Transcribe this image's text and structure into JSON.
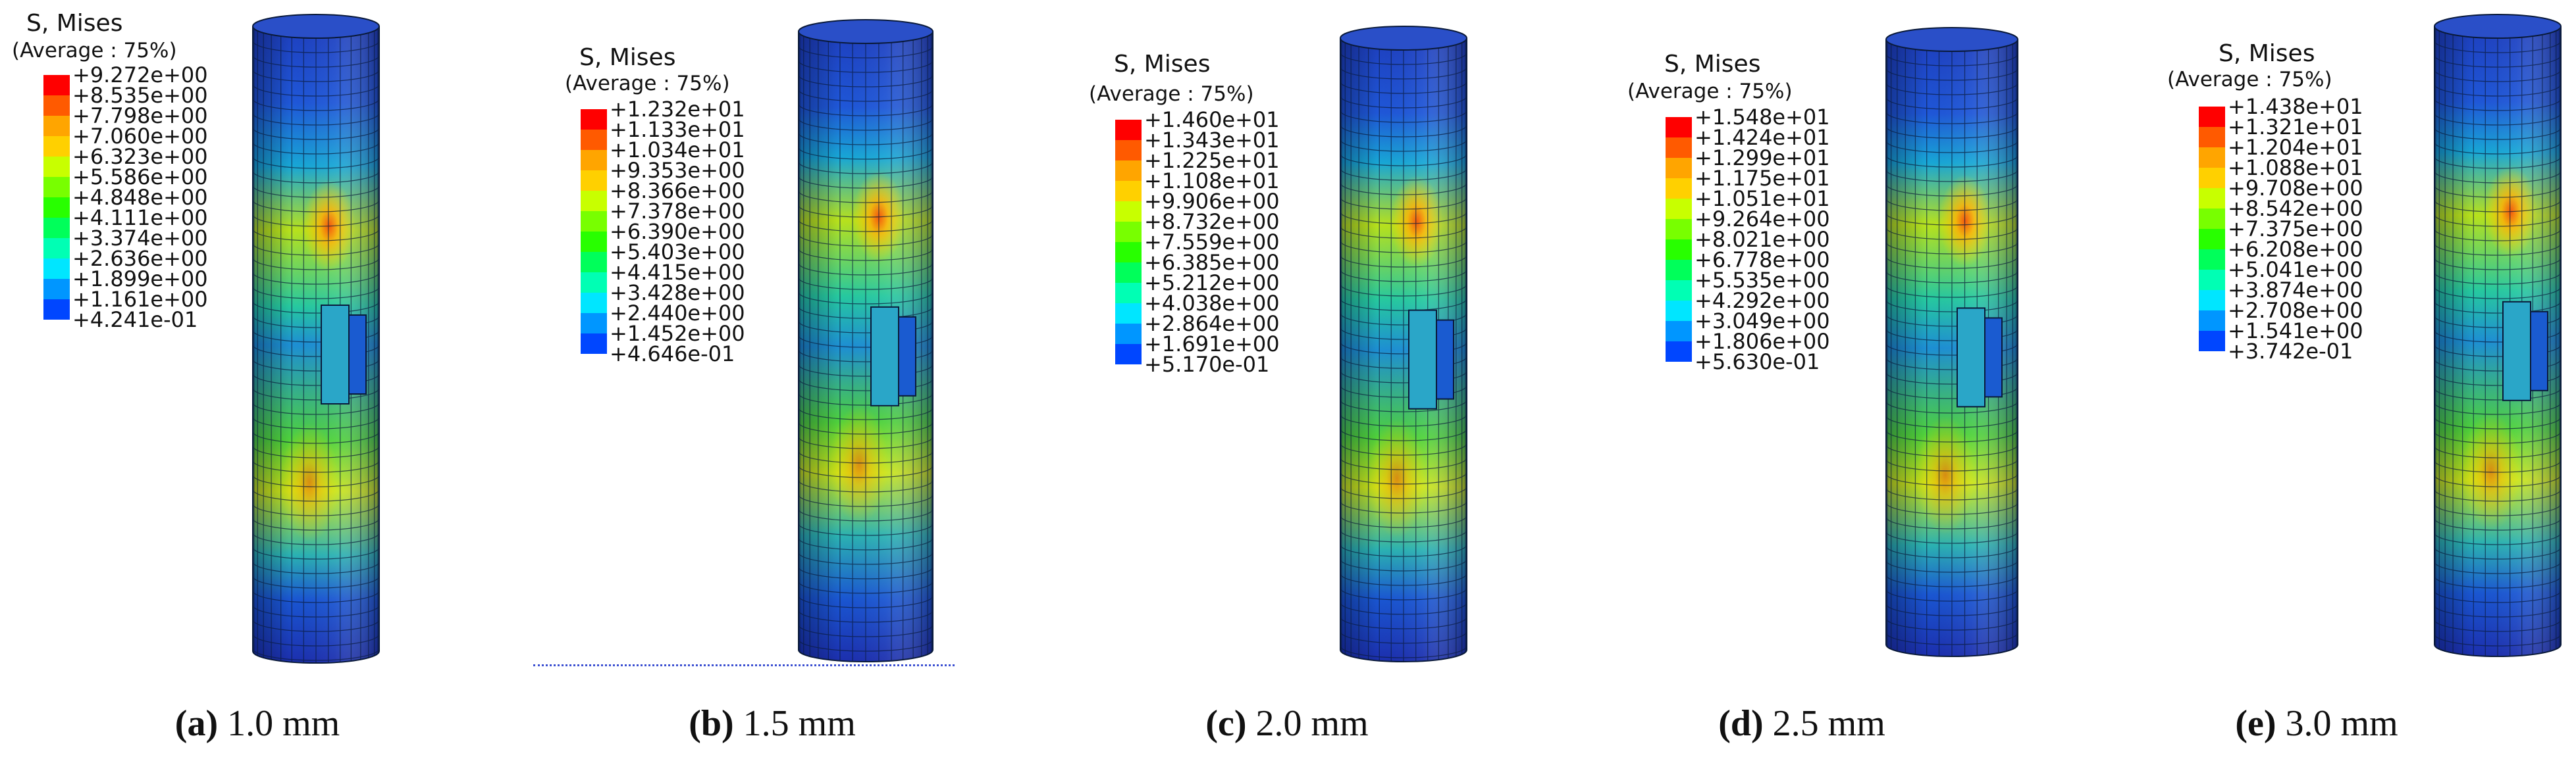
{
  "legend_colors": [
    "#ff0000",
    "#ff5a00",
    "#ffa500",
    "#ffd000",
    "#c8ff00",
    "#78ff00",
    "#28ff00",
    "#00ff5a",
    "#00ffb4",
    "#00e6ff",
    "#0096ff",
    "#0046ff",
    "#0000ff"
  ],
  "panels": [
    {
      "id": "a",
      "title": "S, Mises",
      "subtitle": "(Average : 75%)",
      "legend_values": [
        "+9.272e+00",
        "+8.535e+00",
        "+7.798e+00",
        "+7.060e+00",
        "+6.323e+00",
        "+5.586e+00",
        "+4.848e+00",
        "+4.111e+00",
        "+3.374e+00",
        "+2.636e+00",
        "+1.899e+00",
        "+1.161e+00",
        "+4.241e-01"
      ],
      "caption_letter": "a",
      "caption_value": "1.0 mm",
      "hotspots": [
        0.32,
        0.73
      ]
    },
    {
      "id": "b",
      "title": "S, Mises",
      "subtitle": "(Average : 75%)",
      "legend_values": [
        "+1.232e+01",
        "+1.133e+01",
        "+1.034e+01",
        "+9.353e+00",
        "+8.366e+00",
        "+7.378e+00",
        "+6.390e+00",
        "+5.403e+00",
        "+4.415e+00",
        "+3.428e+00",
        "+2.440e+00",
        "+1.452e+00",
        "+4.646e-01"
      ],
      "caption_letter": "b",
      "caption_value": "1.5 mm",
      "hotspots": [
        0.3,
        0.7
      ]
    },
    {
      "id": "c",
      "title": "S, Mises",
      "subtitle": "(Average : 75%)",
      "legend_values": [
        "+1.460e+01",
        "+1.343e+01",
        "+1.225e+01",
        "+1.108e+01",
        "+9.906e+00",
        "+8.732e+00",
        "+7.559e+00",
        "+6.385e+00",
        "+5.212e+00",
        "+4.038e+00",
        "+2.864e+00",
        "+1.691e+00",
        "+5.170e-01"
      ],
      "caption_letter": "c",
      "caption_value": "2.0 mm",
      "hotspots": [
        0.3,
        0.72
      ]
    },
    {
      "id": "d",
      "title": "S, Mises",
      "subtitle": "(Average : 75%)",
      "legend_values": [
        "+1.548e+01",
        "+1.424e+01",
        "+1.299e+01",
        "+1.175e+01",
        "+1.051e+01",
        "+9.264e+00",
        "+8.021e+00",
        "+6.778e+00",
        "+5.535e+00",
        "+4.292e+00",
        "+3.049e+00",
        "+1.806e+00",
        "+5.630e-01"
      ],
      "caption_letter": "d",
      "caption_value": "2.5 mm",
      "hotspots": [
        0.3,
        0.72
      ]
    },
    {
      "id": "e",
      "title": "S, Mises",
      "subtitle": "(Average : 75%)",
      "legend_values": [
        "+1.438e+01",
        "+1.321e+01",
        "+1.204e+01",
        "+1.088e+01",
        "+9.708e+00",
        "+8.542e+00",
        "+7.375e+00",
        "+6.208e+00",
        "+5.041e+00",
        "+3.874e+00",
        "+2.708e+00",
        "+1.541e+00",
        "+3.742e-01"
      ],
      "caption_letter": "e",
      "caption_value": "3.0 mm",
      "hotspots": [
        0.3,
        0.72
      ]
    }
  ]
}
